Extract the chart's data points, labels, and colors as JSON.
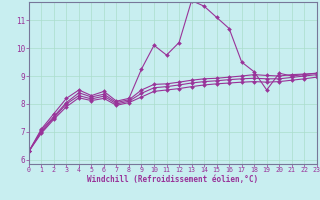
{
  "xlabel": "Windchill (Refroidissement éolien,°C)",
  "bg_color": "#c8eef0",
  "line_color": "#993399",
  "grid_color": "#aaddcc",
  "axis_color": "#777799",
  "x_ticks": [
    0,
    1,
    2,
    3,
    4,
    5,
    6,
    7,
    8,
    9,
    10,
    11,
    12,
    13,
    14,
    15,
    16,
    17,
    18,
    19,
    20,
    21,
    22,
    23
  ],
  "y_ticks": [
    6,
    7,
    8,
    9,
    10,
    11
  ],
  "xlim": [
    0,
    23
  ],
  "ylim": [
    5.85,
    11.65
  ],
  "series": [
    [
      6.3,
      7.1,
      7.65,
      8.2,
      8.5,
      8.3,
      8.45,
      8.1,
      8.2,
      9.25,
      10.1,
      9.75,
      10.2,
      11.7,
      11.5,
      11.1,
      10.7,
      9.5,
      9.15,
      8.5,
      9.1,
      9.0,
      9.05,
      9.1
    ],
    [
      6.3,
      7.05,
      7.55,
      8.05,
      8.4,
      8.25,
      8.35,
      8.05,
      8.15,
      8.5,
      8.7,
      8.72,
      8.78,
      8.85,
      8.9,
      8.92,
      8.96,
      9.0,
      9.05,
      9.02,
      9.0,
      9.05,
      9.07,
      9.1
    ],
    [
      6.3,
      7.0,
      7.5,
      8.0,
      8.3,
      8.18,
      8.28,
      8.0,
      8.1,
      8.38,
      8.58,
      8.62,
      8.68,
      8.75,
      8.8,
      8.83,
      8.87,
      8.9,
      8.92,
      8.9,
      8.9,
      8.95,
      9.0,
      9.05
    ],
    [
      6.3,
      6.95,
      7.45,
      7.9,
      8.22,
      8.12,
      8.2,
      7.95,
      8.05,
      8.25,
      8.45,
      8.5,
      8.55,
      8.62,
      8.68,
      8.72,
      8.75,
      8.78,
      8.8,
      8.78,
      8.8,
      8.85,
      8.9,
      8.96
    ]
  ],
  "marker": "D",
  "markersize": 2.0,
  "linewidth": 0.8
}
